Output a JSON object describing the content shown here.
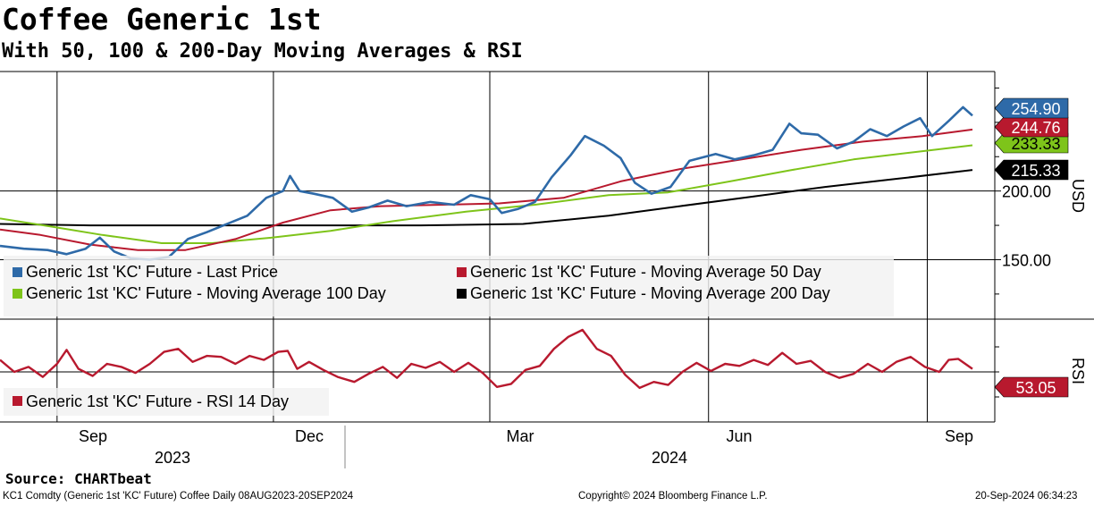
{
  "title": "Coffee Generic 1st",
  "subtitle": "With 50, 100 & 200-Day Moving Averages & RSI",
  "footer": {
    "source": "Source: CHARTbeat",
    "ticker": "KC1 Comdty (Generic 1st 'KC' Future) Coffee  Daily 08AUG2023-20SEP2024",
    "copyright": "Copyright© 2024 Bloomberg Finance L.P.",
    "timestamp": "20-Sep-2024 06:34:23"
  },
  "colors": {
    "last_price": "#2e6aa8",
    "ma50": "#b8192e",
    "ma100": "#7ec41a",
    "ma200": "#000000",
    "rsi": "#b8192e"
  },
  "chart_data": [
    {
      "type": "line",
      "panel": "price",
      "ylabel": "USD",
      "ylim": [
        108,
        287
      ],
      "yticks": [
        150,
        200
      ],
      "ytick_labels": [
        "150.00",
        "200.00"
      ],
      "x_months": [
        "Sep",
        "Dec",
        "Mar",
        "Jun",
        "Sep"
      ],
      "x_years": [
        "2023",
        "2024"
      ],
      "x_range": [
        "2023-08-08",
        "2024-09-20"
      ],
      "grid": true,
      "legend_position": "bottom-left",
      "series": [
        {
          "name": "Generic 1st 'KC' Future - Last Price",
          "last_label": "254.90",
          "points": [
            [
              "2023-08-08",
              160
            ],
            [
              "2023-08-18",
              158
            ],
            [
              "2023-08-28",
              157
            ],
            [
              "2023-09-05",
              154
            ],
            [
              "2023-09-13",
              158
            ],
            [
              "2023-09-19",
              166
            ],
            [
              "2023-09-25",
              156
            ],
            [
              "2023-10-02",
              151
            ],
            [
              "2023-10-10",
              150
            ],
            [
              "2023-10-18",
              152
            ],
            [
              "2023-10-26",
              165
            ],
            [
              "2023-11-03",
              170
            ],
            [
              "2023-11-10",
              175
            ],
            [
              "2023-11-20",
              182
            ],
            [
              "2023-11-28",
              195
            ],
            [
              "2023-12-05",
              200
            ],
            [
              "2023-12-08",
              211
            ],
            [
              "2023-12-12",
              200
            ],
            [
              "2023-12-18",
              198
            ],
            [
              "2023-12-26",
              195
            ],
            [
              "2024-01-03",
              185
            ],
            [
              "2024-01-10",
              188
            ],
            [
              "2024-01-18",
              193
            ],
            [
              "2024-01-26",
              189
            ],
            [
              "2024-02-05",
              192
            ],
            [
              "2024-02-15",
              190
            ],
            [
              "2024-02-22",
              197
            ],
            [
              "2024-03-01",
              194
            ],
            [
              "2024-03-06",
              184
            ],
            [
              "2024-03-13",
              187
            ],
            [
              "2024-03-20",
              192
            ],
            [
              "2024-03-27",
              210
            ],
            [
              "2024-04-04",
              226
            ],
            [
              "2024-04-10",
              240
            ],
            [
              "2024-04-18",
              233
            ],
            [
              "2024-04-25",
              224
            ],
            [
              "2024-05-01",
              206
            ],
            [
              "2024-05-08",
              198
            ],
            [
              "2024-05-16",
              203
            ],
            [
              "2024-05-24",
              222
            ],
            [
              "2024-06-04",
              227
            ],
            [
              "2024-06-12",
              223
            ],
            [
              "2024-06-20",
              226
            ],
            [
              "2024-06-28",
              230
            ],
            [
              "2024-07-05",
              249
            ],
            [
              "2024-07-10",
              242
            ],
            [
              "2024-07-17",
              241
            ],
            [
              "2024-07-25",
              231
            ],
            [
              "2024-08-01",
              236
            ],
            [
              "2024-08-08",
              245
            ],
            [
              "2024-08-15",
              240
            ],
            [
              "2024-08-22",
              247
            ],
            [
              "2024-08-29",
              253
            ],
            [
              "2024-09-03",
              240
            ],
            [
              "2024-09-10",
              251
            ],
            [
              "2024-09-16",
              261
            ],
            [
              "2024-09-20",
              254.9
            ]
          ]
        },
        {
          "name": "Generic 1st 'KC' Future - Moving Average 50 Day",
          "last_label": "244.76",
          "points": [
            [
              "2023-08-08",
              172
            ],
            [
              "2023-08-25",
              168
            ],
            [
              "2023-09-15",
              161
            ],
            [
              "2023-10-05",
              157
            ],
            [
              "2023-10-25",
              157
            ],
            [
              "2023-11-15",
              165
            ],
            [
              "2023-12-05",
              177
            ],
            [
              "2023-12-25",
              186
            ],
            [
              "2024-01-15",
              189
            ],
            [
              "2024-02-10",
              190
            ],
            [
              "2024-03-05",
              191
            ],
            [
              "2024-04-01",
              195
            ],
            [
              "2024-04-25",
              207
            ],
            [
              "2024-05-20",
              216
            ],
            [
              "2024-06-15",
              223
            ],
            [
              "2024-07-10",
              230
            ],
            [
              "2024-08-05",
              236
            ],
            [
              "2024-08-30",
              240
            ],
            [
              "2024-09-20",
              244.76
            ]
          ]
        },
        {
          "name": "Generic 1st 'KC' Future - Moving Average 100 Day",
          "last_label": "233.33",
          "points": [
            [
              "2023-08-08",
              180
            ],
            [
              "2023-08-30",
              174
            ],
            [
              "2023-09-20",
              168
            ],
            [
              "2023-10-15",
              162
            ],
            [
              "2023-11-05",
              162
            ],
            [
              "2023-11-30",
              166
            ],
            [
              "2023-12-25",
              171
            ],
            [
              "2024-01-20",
              178
            ],
            [
              "2024-02-20",
              185
            ],
            [
              "2024-03-20",
              190
            ],
            [
              "2024-04-20",
              197
            ],
            [
              "2024-05-15",
              199
            ],
            [
              "2024-06-10",
              207
            ],
            [
              "2024-07-05",
              215
            ],
            [
              "2024-08-01",
              223
            ],
            [
              "2024-08-30",
              229
            ],
            [
              "2024-09-20",
              233.33
            ]
          ]
        },
        {
          "name": "Generic 1st 'KC' Future - Moving Average 200 Day",
          "last_label": "215.33",
          "points": [
            [
              "2023-08-08",
              176
            ],
            [
              "2023-09-15",
              175
            ],
            [
              "2023-10-25",
              175
            ],
            [
              "2023-12-15",
              175
            ],
            [
              "2024-02-01",
              175
            ],
            [
              "2024-03-15",
              176
            ],
            [
              "2024-04-20",
              182
            ],
            [
              "2024-05-20",
              189
            ],
            [
              "2024-06-20",
              196
            ],
            [
              "2024-07-20",
              203
            ],
            [
              "2024-08-20",
              209
            ],
            [
              "2024-09-20",
              215.33
            ]
          ]
        }
      ]
    },
    {
      "type": "line",
      "panel": "rsi",
      "ylabel": "RSI",
      "ylim": [
        0,
        100
      ],
      "grid": true,
      "legend_position": "bottom-left",
      "series": [
        {
          "name": "Generic 1st 'KC' Future - RSI 14 Day",
          "last_label": "53.05",
          "points": [
            [
              "2023-08-08",
              62
            ],
            [
              "2023-08-14",
              50
            ],
            [
              "2023-08-20",
              55
            ],
            [
              "2023-08-26",
              45
            ],
            [
              "2023-09-01",
              58
            ],
            [
              "2023-09-05",
              72
            ],
            [
              "2023-09-10",
              53
            ],
            [
              "2023-09-16",
              46
            ],
            [
              "2023-09-22",
              58
            ],
            [
              "2023-09-28",
              55
            ],
            [
              "2023-10-04",
              49
            ],
            [
              "2023-10-10",
              58
            ],
            [
              "2023-10-16",
              70
            ],
            [
              "2023-10-22",
              73
            ],
            [
              "2023-10-28",
              60
            ],
            [
              "2023-11-03",
              66
            ],
            [
              "2023-11-09",
              65
            ],
            [
              "2023-11-15",
              58
            ],
            [
              "2023-11-21",
              66
            ],
            [
              "2023-11-27",
              62
            ],
            [
              "2023-12-03",
              70
            ],
            [
              "2023-12-07",
              71
            ],
            [
              "2023-12-11",
              53
            ],
            [
              "2023-12-16",
              60
            ],
            [
              "2023-12-22",
              52
            ],
            [
              "2023-12-28",
              45
            ],
            [
              "2024-01-04",
              40
            ],
            [
              "2024-01-10",
              48
            ],
            [
              "2024-01-16",
              55
            ],
            [
              "2024-01-22",
              44
            ],
            [
              "2024-01-28",
              58
            ],
            [
              "2024-02-03",
              54
            ],
            [
              "2024-02-09",
              60
            ],
            [
              "2024-02-15",
              50
            ],
            [
              "2024-02-21",
              59
            ],
            [
              "2024-02-27",
              49
            ],
            [
              "2024-03-04",
              35
            ],
            [
              "2024-03-10",
              38
            ],
            [
              "2024-03-16",
              52
            ],
            [
              "2024-03-22",
              56
            ],
            [
              "2024-03-28",
              73
            ],
            [
              "2024-04-03",
              85
            ],
            [
              "2024-04-09",
              92
            ],
            [
              "2024-04-15",
              73
            ],
            [
              "2024-04-21",
              66
            ],
            [
              "2024-04-27",
              47
            ],
            [
              "2024-05-03",
              34
            ],
            [
              "2024-05-09",
              40
            ],
            [
              "2024-05-15",
              37
            ],
            [
              "2024-05-21",
              50
            ],
            [
              "2024-05-27",
              59
            ],
            [
              "2024-06-02",
              51
            ],
            [
              "2024-06-08",
              58
            ],
            [
              "2024-06-14",
              56
            ],
            [
              "2024-06-20",
              62
            ],
            [
              "2024-06-26",
              57
            ],
            [
              "2024-07-02",
              69
            ],
            [
              "2024-07-08",
              58
            ],
            [
              "2024-07-14",
              61
            ],
            [
              "2024-07-20",
              50
            ],
            [
              "2024-07-26",
              44
            ],
            [
              "2024-08-01",
              48
            ],
            [
              "2024-08-07",
              58
            ],
            [
              "2024-08-13",
              50
            ],
            [
              "2024-08-19",
              60
            ],
            [
              "2024-08-25",
              65
            ],
            [
              "2024-08-31",
              55
            ],
            [
              "2024-09-06",
              50
            ],
            [
              "2024-09-10",
              62
            ],
            [
              "2024-09-14",
              63
            ],
            [
              "2024-09-20",
              53.05
            ]
          ]
        }
      ]
    }
  ]
}
